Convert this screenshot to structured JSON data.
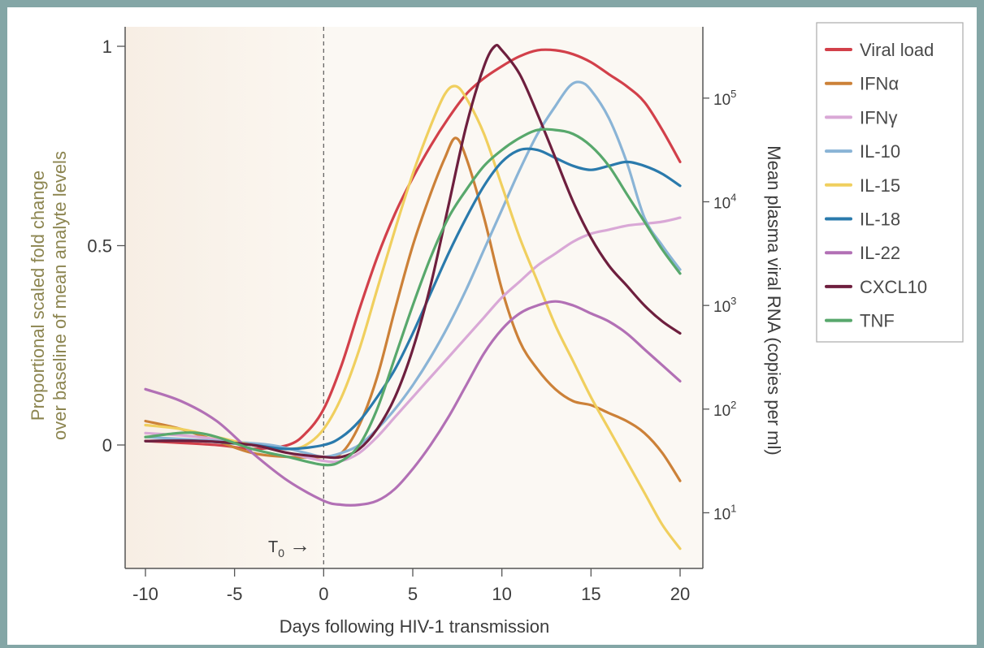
{
  "chart_data": {
    "type": "line",
    "xlabel": "Days following HIV-1 transmission",
    "ylabel_line1": "Proportional scaled fold change",
    "ylabel_line2": "over baseline of mean analyte levels",
    "y2label": "Mean plasma viral RNA (copies per ml)",
    "xlim": [
      -10,
      20
    ],
    "ylim": [
      -0.3,
      1.0
    ],
    "x_ticks": [
      -10,
      -5,
      0,
      5,
      10,
      15,
      20
    ],
    "x_tick_labels": [
      "-10",
      "-5",
      "0",
      "5",
      "10",
      "15",
      "20"
    ],
    "y_ticks": [
      0,
      0.5,
      1
    ],
    "y_tick_labels": [
      "0",
      "0.5",
      "1"
    ],
    "y2_ticks": [
      {
        "base": "10",
        "exp": "1",
        "y": -0.17
      },
      {
        "base": "10",
        "exp": "2",
        "y": 0.09
      },
      {
        "base": "10",
        "exp": "3",
        "y": 0.35
      },
      {
        "base": "10",
        "exp": "4",
        "y": 0.61
      },
      {
        "base": "10",
        "exp": "5",
        "y": 0.87
      }
    ],
    "t0_day": 0,
    "annotation": {
      "text": "T",
      "subscript": "0",
      "arrow": "→"
    },
    "legend_position": "right",
    "series": [
      {
        "name": "Viral load",
        "color": "#d2404a",
        "points": [
          [
            -10,
            0.01
          ],
          [
            -6,
            0.0
          ],
          [
            -4,
            -0.01
          ],
          [
            -2,
            0.0
          ],
          [
            -1,
            0.03
          ],
          [
            0,
            0.09
          ],
          [
            1,
            0.2
          ],
          [
            2,
            0.34
          ],
          [
            3,
            0.47
          ],
          [
            4,
            0.58
          ],
          [
            5,
            0.67
          ],
          [
            6,
            0.75
          ],
          [
            7,
            0.82
          ],
          [
            8,
            0.88
          ],
          [
            9,
            0.92
          ],
          [
            10,
            0.95
          ],
          [
            11,
            0.975
          ],
          [
            12,
            0.99
          ],
          [
            13,
            0.99
          ],
          [
            14,
            0.98
          ],
          [
            15,
            0.96
          ],
          [
            16,
            0.93
          ],
          [
            17,
            0.9
          ],
          [
            18,
            0.86
          ],
          [
            19,
            0.79
          ],
          [
            20,
            0.71
          ]
        ]
      },
      {
        "name": "IFNα",
        "color": "#cc8138",
        "points": [
          [
            -10,
            0.06
          ],
          [
            -8,
            0.04
          ],
          [
            -6,
            0.01
          ],
          [
            -4,
            -0.02
          ],
          [
            -2,
            -0.03
          ],
          [
            0,
            -0.03
          ],
          [
            1,
            -0.02
          ],
          [
            2,
            0.05
          ],
          [
            3,
            0.17
          ],
          [
            4,
            0.34
          ],
          [
            5,
            0.5
          ],
          [
            6,
            0.63
          ],
          [
            6.8,
            0.72
          ],
          [
            7.4,
            0.77
          ],
          [
            8,
            0.72
          ],
          [
            9,
            0.57
          ],
          [
            10,
            0.39
          ],
          [
            11,
            0.26
          ],
          [
            12,
            0.19
          ],
          [
            13,
            0.14
          ],
          [
            14,
            0.11
          ],
          [
            15,
            0.1
          ],
          [
            16,
            0.08
          ],
          [
            17,
            0.06
          ],
          [
            18,
            0.03
          ],
          [
            19,
            -0.02
          ],
          [
            20,
            -0.09
          ]
        ]
      },
      {
        "name": "IFNγ",
        "color": "#d9a8d6",
        "points": [
          [
            -10,
            0.03
          ],
          [
            -7,
            0.02
          ],
          [
            -4,
            0.0
          ],
          [
            -2,
            -0.02
          ],
          [
            0,
            -0.04
          ],
          [
            1,
            -0.04
          ],
          [
            2,
            -0.02
          ],
          [
            3,
            0.02
          ],
          [
            4,
            0.07
          ],
          [
            5,
            0.12
          ],
          [
            6,
            0.17
          ],
          [
            7,
            0.22
          ],
          [
            8,
            0.27
          ],
          [
            9,
            0.32
          ],
          [
            10,
            0.37
          ],
          [
            11,
            0.41
          ],
          [
            12,
            0.45
          ],
          [
            13,
            0.48
          ],
          [
            14,
            0.51
          ],
          [
            15,
            0.53
          ],
          [
            16,
            0.54
          ],
          [
            17,
            0.55
          ],
          [
            18,
            0.555
          ],
          [
            19,
            0.56
          ],
          [
            20,
            0.57
          ]
        ]
      },
      {
        "name": "IL-10",
        "color": "#8ab4d6",
        "points": [
          [
            -10,
            0.02
          ],
          [
            -6,
            0.01
          ],
          [
            -3,
            0.0
          ],
          [
            -1,
            -0.02
          ],
          [
            0,
            -0.03
          ],
          [
            1,
            -0.02
          ],
          [
            2,
            0.0
          ],
          [
            3,
            0.04
          ],
          [
            4,
            0.09
          ],
          [
            5,
            0.15
          ],
          [
            6,
            0.22
          ],
          [
            7,
            0.3
          ],
          [
            8,
            0.39
          ],
          [
            9,
            0.49
          ],
          [
            10,
            0.59
          ],
          [
            11,
            0.69
          ],
          [
            12,
            0.78
          ],
          [
            13,
            0.85
          ],
          [
            13.8,
            0.9
          ],
          [
            14.4,
            0.91
          ],
          [
            15,
            0.89
          ],
          [
            16,
            0.82
          ],
          [
            17,
            0.71
          ],
          [
            18,
            0.57
          ],
          [
            19,
            0.5
          ],
          [
            20,
            0.44
          ]
        ]
      },
      {
        "name": "IL-15",
        "color": "#f0cf5e",
        "points": [
          [
            -10,
            0.05
          ],
          [
            -8,
            0.04
          ],
          [
            -6,
            0.02
          ],
          [
            -4,
            0.0
          ],
          [
            -2,
            -0.01
          ],
          [
            -1,
            0.0
          ],
          [
            0,
            0.04
          ],
          [
            1,
            0.12
          ],
          [
            2,
            0.24
          ],
          [
            3,
            0.39
          ],
          [
            4,
            0.54
          ],
          [
            5,
            0.68
          ],
          [
            6,
            0.8
          ],
          [
            6.8,
            0.88
          ],
          [
            7.4,
            0.9
          ],
          [
            8,
            0.87
          ],
          [
            9,
            0.78
          ],
          [
            10,
            0.65
          ],
          [
            11,
            0.52
          ],
          [
            12,
            0.41
          ],
          [
            13,
            0.3
          ],
          [
            14,
            0.21
          ],
          [
            15,
            0.12
          ],
          [
            16,
            0.04
          ],
          [
            17,
            -0.04
          ],
          [
            18,
            -0.12
          ],
          [
            19,
            -0.2
          ],
          [
            20,
            -0.26
          ]
        ]
      },
      {
        "name": "IL-18",
        "color": "#2a7aac",
        "points": [
          [
            -10,
            0.01
          ],
          [
            -7,
            0.01
          ],
          [
            -4,
            0.0
          ],
          [
            -2,
            -0.01
          ],
          [
            0,
            0.0
          ],
          [
            1,
            0.02
          ],
          [
            2,
            0.06
          ],
          [
            3,
            0.12
          ],
          [
            4,
            0.19
          ],
          [
            5,
            0.28
          ],
          [
            6,
            0.38
          ],
          [
            7,
            0.48
          ],
          [
            8,
            0.57
          ],
          [
            9,
            0.65
          ],
          [
            10,
            0.71
          ],
          [
            11,
            0.74
          ],
          [
            12,
            0.74
          ],
          [
            13,
            0.72
          ],
          [
            14,
            0.7
          ],
          [
            15,
            0.69
          ],
          [
            16,
            0.7
          ],
          [
            17,
            0.71
          ],
          [
            18,
            0.7
          ],
          [
            19,
            0.68
          ],
          [
            20,
            0.65
          ]
        ]
      },
      {
        "name": "IL-22",
        "color": "#b270b5",
        "points": [
          [
            -10,
            0.14
          ],
          [
            -8,
            0.11
          ],
          [
            -6,
            0.06
          ],
          [
            -4,
            -0.02
          ],
          [
            -2,
            -0.09
          ],
          [
            0,
            -0.14
          ],
          [
            1,
            -0.15
          ],
          [
            2,
            -0.15
          ],
          [
            3,
            -0.14
          ],
          [
            4,
            -0.11
          ],
          [
            5,
            -0.06
          ],
          [
            6,
            0.0
          ],
          [
            7,
            0.07
          ],
          [
            8,
            0.15
          ],
          [
            9,
            0.23
          ],
          [
            10,
            0.29
          ],
          [
            11,
            0.33
          ],
          [
            12,
            0.35
          ],
          [
            13,
            0.36
          ],
          [
            14,
            0.35
          ],
          [
            15,
            0.33
          ],
          [
            16,
            0.31
          ],
          [
            17,
            0.28
          ],
          [
            18,
            0.24
          ],
          [
            19,
            0.2
          ],
          [
            20,
            0.16
          ]
        ]
      },
      {
        "name": "CXCL10",
        "color": "#6e1f3e",
        "points": [
          [
            -10,
            0.01
          ],
          [
            -7,
            0.01
          ],
          [
            -4,
            0.0
          ],
          [
            -2,
            -0.02
          ],
          [
            0,
            -0.03
          ],
          [
            1,
            -0.03
          ],
          [
            2,
            -0.01
          ],
          [
            3,
            0.04
          ],
          [
            4,
            0.12
          ],
          [
            5,
            0.24
          ],
          [
            6,
            0.4
          ],
          [
            7,
            0.6
          ],
          [
            8,
            0.8
          ],
          [
            9,
            0.95
          ],
          [
            9.6,
            1.0
          ],
          [
            10,
            0.99
          ],
          [
            11,
            0.93
          ],
          [
            12,
            0.83
          ],
          [
            13,
            0.72
          ],
          [
            14,
            0.61
          ],
          [
            15,
            0.52
          ],
          [
            16,
            0.45
          ],
          [
            17,
            0.4
          ],
          [
            18,
            0.35
          ],
          [
            19,
            0.31
          ],
          [
            20,
            0.28
          ]
        ]
      },
      {
        "name": "TNF",
        "color": "#58a86c",
        "points": [
          [
            -10,
            0.02
          ],
          [
            -7,
            0.03
          ],
          [
            -4,
            -0.01
          ],
          [
            -2,
            -0.03
          ],
          [
            0,
            -0.05
          ],
          [
            1,
            -0.04
          ],
          [
            2,
            0.0
          ],
          [
            3,
            0.09
          ],
          [
            4,
            0.22
          ],
          [
            5,
            0.35
          ],
          [
            6,
            0.47
          ],
          [
            7,
            0.57
          ],
          [
            8,
            0.64
          ],
          [
            9,
            0.7
          ],
          [
            10,
            0.74
          ],
          [
            11,
            0.77
          ],
          [
            12,
            0.79
          ],
          [
            13,
            0.79
          ],
          [
            14,
            0.78
          ],
          [
            15,
            0.75
          ],
          [
            16,
            0.7
          ],
          [
            17,
            0.63
          ],
          [
            18,
            0.56
          ],
          [
            19,
            0.49
          ],
          [
            20,
            0.43
          ]
        ]
      }
    ]
  }
}
